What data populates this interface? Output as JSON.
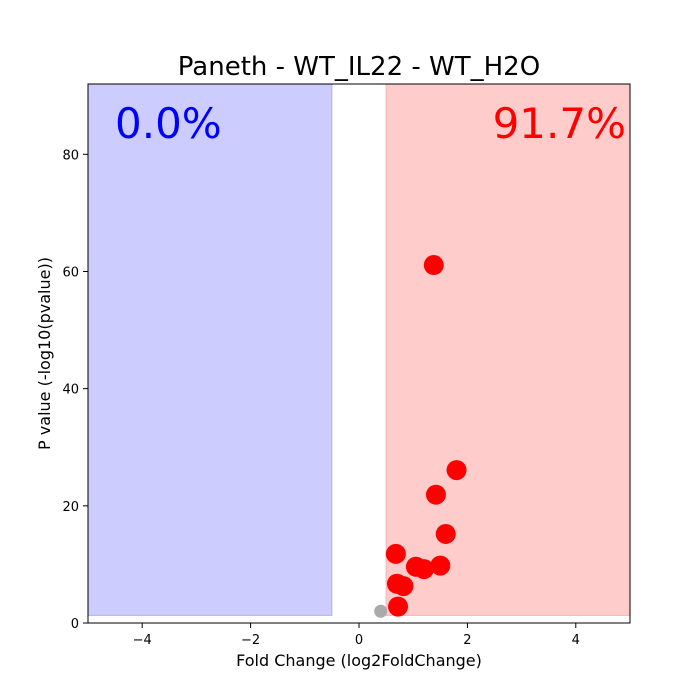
{
  "chart_data": {
    "type": "scatter",
    "title": "Paneth - WT_IL22 - WT_H2O",
    "xlabel": "Fold Change (log2FoldChange)",
    "ylabel": "P value (-log10(pvalue))",
    "xlim": [
      -5,
      5
    ],
    "ylim": [
      0,
      92
    ],
    "xticks": [
      -4,
      -2,
      0,
      2,
      4
    ],
    "yticks": [
      0,
      20,
      40,
      60,
      80
    ],
    "xtick_labels": [
      "−4",
      "−2",
      "0",
      "2",
      "4"
    ],
    "ytick_labels": [
      "0",
      "20",
      "40",
      "60",
      "80"
    ],
    "grid": false,
    "regions": [
      {
        "name": "down",
        "x_range": [
          -5,
          -0.5
        ],
        "y_range": [
          1.3,
          92
        ],
        "color": "#ccccff",
        "edge_color": "#b3b3e6"
      },
      {
        "name": "up",
        "x_range": [
          0.5,
          5
        ],
        "y_range": [
          1.3,
          92
        ],
        "color": "#ffcccc",
        "edge_color": "#f2b3b3"
      }
    ],
    "annotations": [
      {
        "text": "0.0%",
        "color": "#0000ff",
        "position": "top-left"
      },
      {
        "text": "91.7%",
        "color": "#ff0000",
        "position": "top-right"
      }
    ],
    "series": [
      {
        "color": "#ff0000",
        "points": [
          {
            "x": 1.38,
            "y": 61.1
          },
          {
            "x": 1.8,
            "y": 26.1
          },
          {
            "x": 1.42,
            "y": 21.9
          },
          {
            "x": 1.6,
            "y": 15.2
          },
          {
            "x": 0.68,
            "y": 11.8
          },
          {
            "x": 1.05,
            "y": 9.6
          },
          {
            "x": 1.2,
            "y": 9.2
          },
          {
            "x": 1.5,
            "y": 9.8
          },
          {
            "x": 0.7,
            "y": 6.7
          },
          {
            "x": 0.82,
            "y": 6.3
          },
          {
            "x": 0.72,
            "y": 2.8
          }
        ]
      },
      {
        "color": "#aaaaaa",
        "points": [
          {
            "x": 0.4,
            "y": 2.0
          }
        ]
      }
    ]
  }
}
